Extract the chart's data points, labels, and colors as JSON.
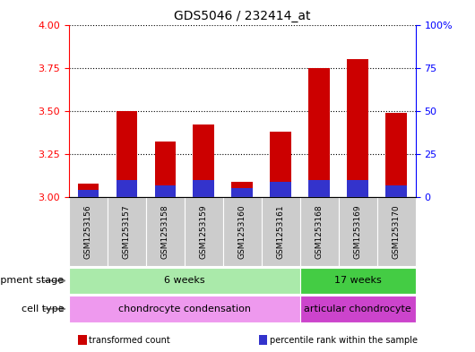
{
  "title": "GDS5046 / 232414_at",
  "samples": [
    "GSM1253156",
    "GSM1253157",
    "GSM1253158",
    "GSM1253159",
    "GSM1253160",
    "GSM1253161",
    "GSM1253168",
    "GSM1253169",
    "GSM1253170"
  ],
  "transformed_counts": [
    3.08,
    3.5,
    3.32,
    3.42,
    3.09,
    3.38,
    3.75,
    3.8,
    3.49
  ],
  "percentile_values": [
    3.04,
    3.1,
    3.07,
    3.1,
    3.05,
    3.09,
    3.1,
    3.1,
    3.07
  ],
  "ylim": [
    3.0,
    4.0
  ],
  "yticks_left": [
    3.0,
    3.25,
    3.5,
    3.75,
    4.0
  ],
  "yticks_right": [
    0,
    25,
    50,
    75,
    100
  ],
  "bar_color": "#cc0000",
  "percentile_color": "#3333cc",
  "development_stage_label": "development stage",
  "cell_type_label": "cell type",
  "dev_groups": [
    {
      "label": "6 weeks",
      "start": 0,
      "end": 5,
      "color": "#aaeaaa"
    },
    {
      "label": "17 weeks",
      "start": 6,
      "end": 8,
      "color": "#44cc44"
    }
  ],
  "cell_groups": [
    {
      "label": "chondrocyte condensation",
      "start": 0,
      "end": 5,
      "color": "#ee99ee"
    },
    {
      "label": "articular chondrocyte",
      "start": 6,
      "end": 8,
      "color": "#cc44cc"
    }
  ],
  "legend_items": [
    {
      "label": "transformed count",
      "color": "#cc0000"
    },
    {
      "label": "percentile rank within the sample",
      "color": "#3333cc"
    }
  ],
  "bar_width": 0.55,
  "background_color": "#ffffff",
  "ticklabel_bg": "#cccccc",
  "right_axis_label_100pct": "100%",
  "right_axis_labels": [
    "100%",
    "75",
    "50",
    "25",
    "0"
  ]
}
